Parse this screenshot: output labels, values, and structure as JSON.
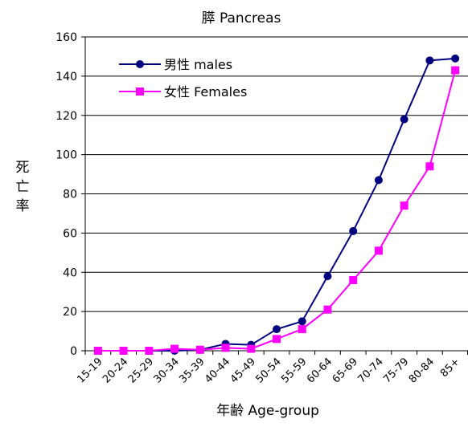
{
  "chart_data": {
    "type": "line",
    "title": "膵 Pancreas",
    "xlabel": "年齢 Age-group",
    "ylabel": "死亡率",
    "ylim": [
      0,
      160
    ],
    "yticks": [
      0,
      20,
      40,
      60,
      80,
      100,
      120,
      140,
      160
    ],
    "grid": true,
    "legend_position": "top-left",
    "categories": [
      "15-19",
      "20-24",
      "25-29",
      "30-34",
      "35-39",
      "40-44",
      "45-49",
      "50-54",
      "55-59",
      "60-64",
      "65-69",
      "70-74",
      "75-79",
      "80-84",
      "85+"
    ],
    "series": [
      {
        "name": "男性 males",
        "color": "#000080",
        "marker": "circle",
        "values": [
          0,
          0,
          0,
          0,
          0.5,
          3.5,
          3.0,
          11,
          15,
          38,
          61,
          87,
          118,
          148,
          149
        ]
      },
      {
        "name": "女性 Females",
        "color": "#ff00ff",
        "marker": "square",
        "values": [
          0,
          0,
          0,
          1,
          0.5,
          1.5,
          1.0,
          6,
          11,
          21,
          36,
          51,
          74,
          94,
          143
        ]
      }
    ]
  }
}
